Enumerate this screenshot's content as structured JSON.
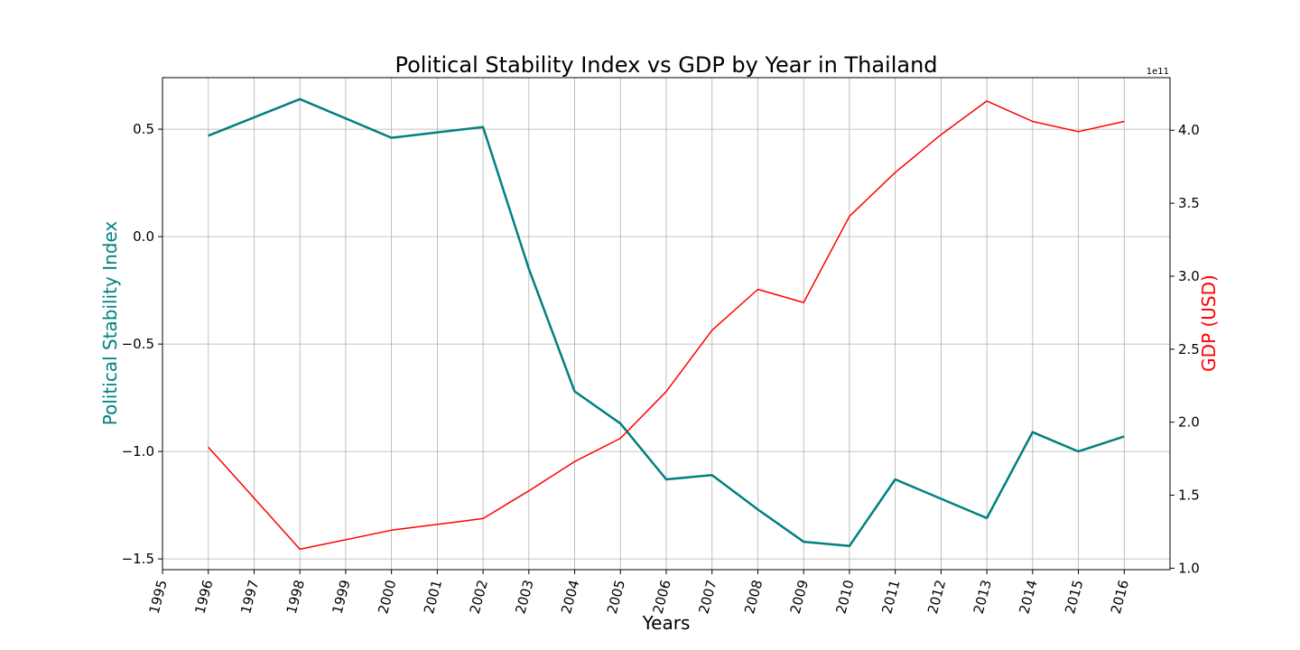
{
  "chart_data": {
    "type": "line",
    "title": "Political Stability Index vs GDP by Year in Thailand",
    "xlabel": "Years",
    "ylabel_left": "Political Stability Index",
    "ylabel_right": "GDP (USD)",
    "right_axis_offset": "1e11",
    "grid": true,
    "x_ticks": [
      "1995",
      "1996",
      "1997",
      "1998",
      "1999",
      "2000",
      "2001",
      "2002",
      "2003",
      "2004",
      "2005",
      "2006",
      "2007",
      "2008",
      "2009",
      "2010",
      "2011",
      "2012",
      "2013",
      "2014",
      "2015",
      "2016"
    ],
    "xlim": [
      1995,
      2017
    ],
    "y_left_ticks": [
      "0.5",
      "0.0",
      "−0.5",
      "−1.0",
      "−1.5"
    ],
    "y_left_tick_values": [
      0.5,
      0.0,
      -0.5,
      -1.0,
      -1.5
    ],
    "y_left_lim": [
      -1.55,
      0.74
    ],
    "y_right_ticks": [
      "4.0",
      "3.5",
      "3.0",
      "2.5",
      "2.0",
      "1.5",
      "1.0"
    ],
    "y_right_tick_values": [
      4.0,
      3.5,
      3.0,
      2.5,
      2.0,
      1.5,
      1.0
    ],
    "y_right_lim": [
      0.99,
      4.36
    ],
    "colors": {
      "stability": "#008080",
      "gdp": "#ff0000",
      "grid": "#b0b0b0",
      "axes": "#000000"
    },
    "series": [
      {
        "name": "Political Stability Index",
        "axis": "left",
        "color": "#008080",
        "x": [
          1996,
          1998,
          2000,
          2002,
          2003,
          2004,
          2005,
          2006,
          2007,
          2008,
          2009,
          2010,
          2011,
          2012,
          2013,
          2014,
          2015,
          2016
        ],
        "values": [
          0.47,
          0.64,
          0.46,
          0.51,
          -0.15,
          -0.72,
          -0.87,
          -1.13,
          -1.11,
          -1.27,
          -1.42,
          -1.44,
          -1.13,
          -1.22,
          -1.31,
          -0.91,
          -1.0,
          -0.93
        ]
      },
      {
        "name": "GDP (USD)",
        "axis": "right",
        "unit_multiplier": "1e11",
        "color": "#ff0000",
        "x": [
          1996,
          1998,
          2000,
          2002,
          2003,
          2004,
          2005,
          2006,
          2007,
          2008,
          2009,
          2010,
          2011,
          2012,
          2013,
          2014,
          2015,
          2016
        ],
        "values": [
          1.83,
          1.13,
          1.26,
          1.34,
          1.53,
          1.73,
          1.89,
          2.21,
          2.63,
          2.91,
          2.82,
          3.41,
          3.71,
          3.97,
          4.2,
          4.06,
          3.99,
          4.06
        ]
      }
    ]
  }
}
